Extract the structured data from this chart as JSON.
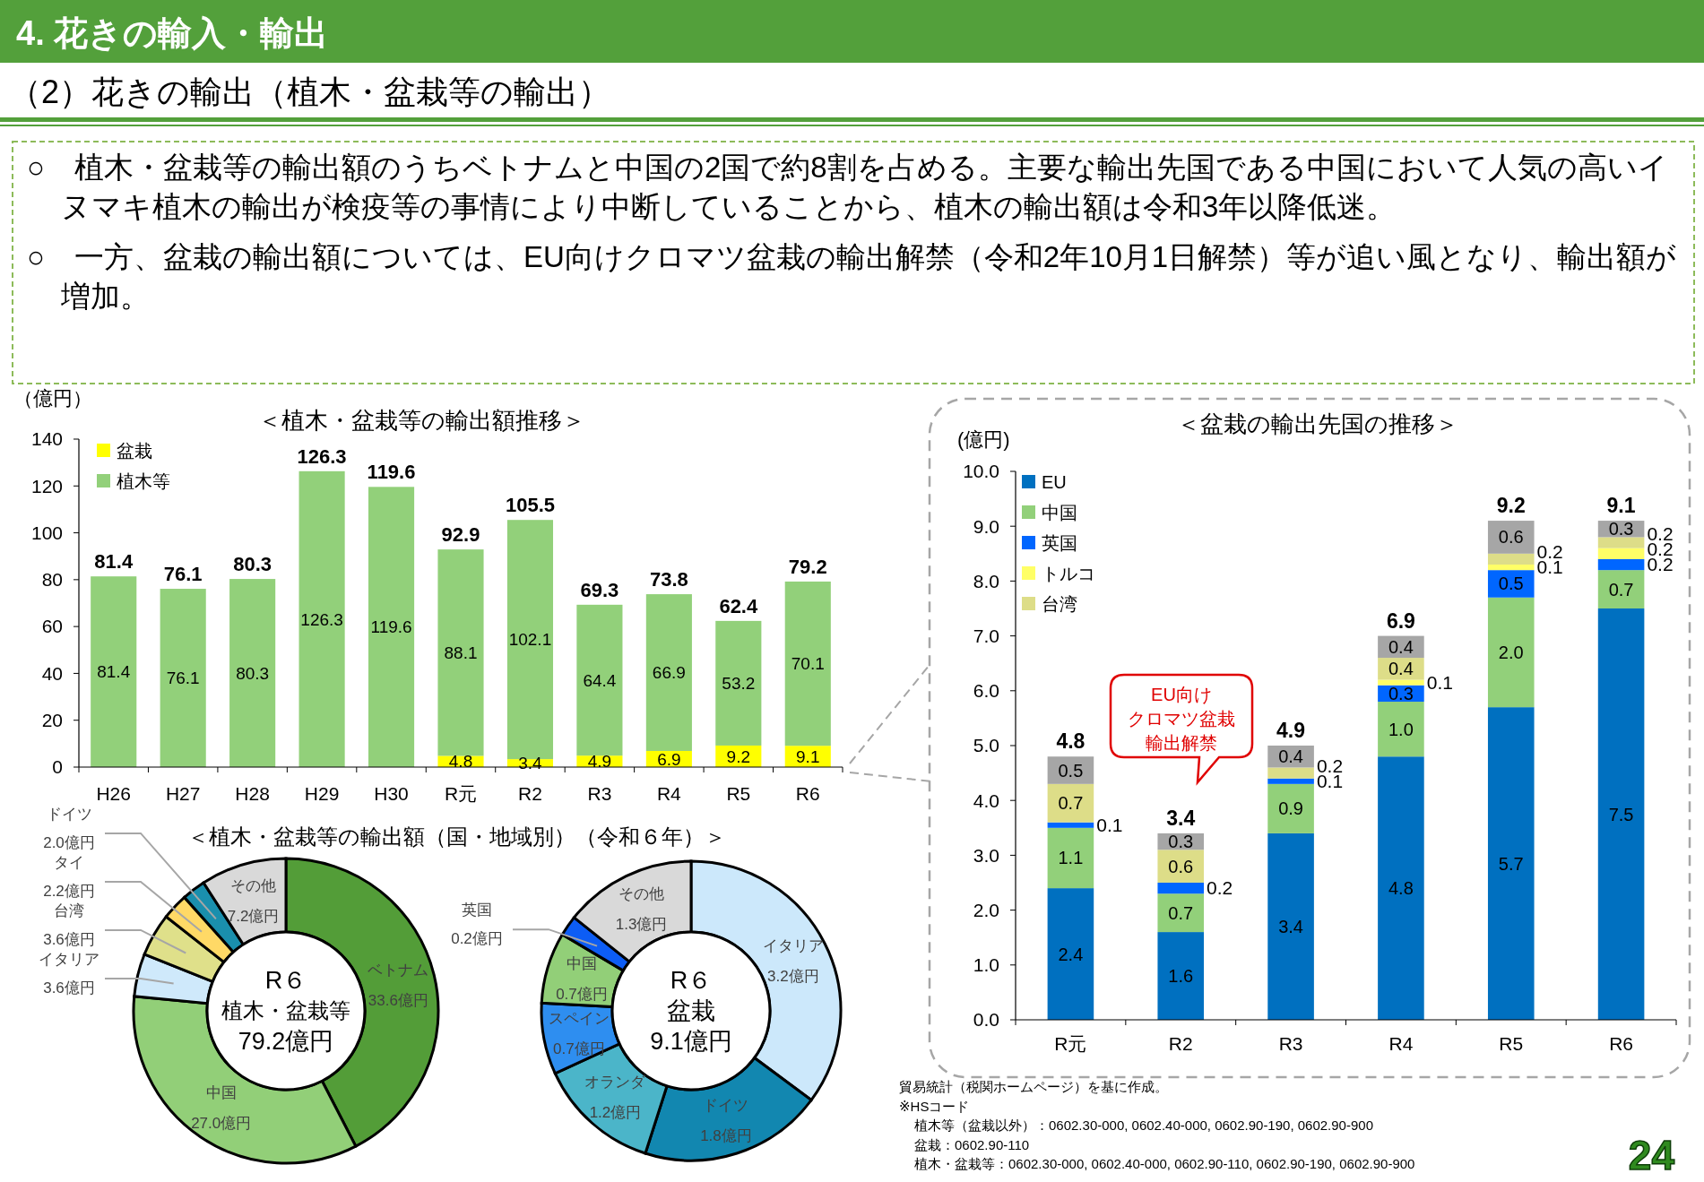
{
  "chart_data": [
    {
      "type": "other",
      "title": "4. 花きの輸入・輸出",
      "subtitle": "（2）花きの輸出（植木・盆栽等の輸出）",
      "annotations": [
        "○　植木・盆栽等の輸出額のうちベトナムと中国の2国で約8割を占める。主要な輸出先国である中国において人気の高いイヌマキ植木の輸出が検疫等の事情により中断していることから、植木の輸出額は令和3年以降低迷。",
        "○　一方、盆栽の輸出額については、EU向けクロマツ盆栽の輸出解禁（令和2年10月1日解禁）等が追い風となり、輸出額が増加。",
        "24"
      ]
    },
    {
      "type": "bar",
      "title": "＜植木・盆栽等の輸出額推移＞",
      "ylabel": "（億円）",
      "categories": [
        "H26",
        "H27",
        "H28",
        "H29",
        "H30",
        "R元",
        "R2",
        "R3",
        "R4",
        "R5",
        "R6"
      ],
      "stacked": true,
      "ylim": [
        0,
        140
      ],
      "yticks": [
        0,
        20,
        40,
        60,
        80,
        100,
        120,
        140
      ],
      "legend": "top left",
      "data_labels": true,
      "series": [
        {
          "name": "盆栽",
          "color": "#ffff00",
          "values": [
            null,
            null,
            null,
            null,
            null,
            4.8,
            3.4,
            4.9,
            6.9,
            9.2,
            9.1
          ]
        },
        {
          "name": "植木等",
          "color": "#92d07a",
          "values": [
            81.4,
            76.1,
            80.3,
            126.3,
            119.6,
            88.1,
            102.1,
            64.4,
            66.9,
            53.2,
            70.1
          ]
        }
      ],
      "totals": [
        "81.4",
        "76.1",
        "80.3",
        "126.3",
        "119.6",
        "92.9",
        "105.5",
        "69.3",
        "73.8",
        "62.4",
        "79.2"
      ]
    },
    {
      "type": "bar",
      "title": "＜盆栽の輸出先国の推移＞",
      "ylabel": "(億円)",
      "categories": [
        "R元",
        "R2",
        "R3",
        "R4",
        "R5",
        "R6"
      ],
      "stacked": true,
      "ylim": [
        0,
        10
      ],
      "yticks": [
        {
          "value": 0,
          "label": "0.0"
        },
        {
          "value": 1,
          "label": "1.0"
        },
        {
          "value": 2,
          "label": "2.0"
        },
        {
          "value": 3,
          "label": "3.0"
        },
        {
          "value": 4,
          "label": "4.0"
        },
        {
          "value": 5,
          "label": "5.0"
        },
        {
          "value": 6,
          "label": "6.0"
        },
        {
          "value": 7,
          "label": "7.0"
        },
        {
          "value": 8,
          "label": "8.0"
        },
        {
          "value": 9,
          "label": "9.0"
        },
        {
          "value": 10,
          "label": "10.0"
        }
      ],
      "legend": "top left",
      "series": [
        {
          "name": "EU",
          "color": "#0070c0",
          "values": [
            2.4,
            1.6,
            3.4,
            4.8,
            5.7,
            7.5
          ],
          "value_labels": [
            "2.4",
            "1.6",
            "3.4",
            "4.8",
            "5.7",
            "7.5"
          ]
        },
        {
          "name": "中国",
          "color": "#92d07a",
          "values": [
            1.1,
            0.7,
            0.9,
            1.0,
            2.0,
            0.7
          ],
          "value_labels": [
            "1.1",
            "0.7",
            "0.9",
            "1.0",
            "2.0",
            "0.7"
          ]
        },
        {
          "name": "英国",
          "color": "#0066ff",
          "values": [
            0.1,
            0.2,
            0.1,
            0.3,
            0.5,
            0.2
          ],
          "value_labels": [
            "0.1",
            "0.2",
            "0.1",
            "0.3",
            "0.5",
            "0.2"
          ]
        },
        {
          "name": "トルコ",
          "color": "#ffff66",
          "values": [
            null,
            null,
            null,
            0.1,
            0.1,
            0.2
          ],
          "value_labels": [
            null,
            null,
            null,
            "0.1",
            "0.1",
            "0.2"
          ]
        },
        {
          "name": "台湾",
          "color": "#dddd88",
          "values": [
            0.7,
            0.6,
            0.2,
            0.4,
            0.2,
            0.2
          ],
          "value_labels": [
            "0.7",
            "0.6",
            "0.2",
            "0.4",
            "0.2",
            "0.2"
          ]
        },
        {
          "color": "#a6a6a6",
          "values": [
            0.5,
            0.3,
            0.4,
            0.4,
            0.6,
            0.3
          ],
          "value_labels": [
            "0.5",
            "0.3",
            "0.4",
            "0.4",
            "0.6",
            "0.3"
          ]
        }
      ],
      "totals": [
        "4.8",
        "3.4",
        "4.9",
        "6.9",
        "9.2",
        "9.1"
      ],
      "annotations": [
        "EU向け",
        "クロマツ盆栽",
        "輸出解禁",
        "貿易統計（税関ホームページ）を基に作成。",
        "※HSコード",
        "植木等（盆栽以外）：0602.30-000, 0602.40-000, 0602.90-190, 0602.90-900",
        "盆栽：0602.90-110",
        "植木・盆栽等：0602.30-000, 0602.40-000, 0602.90-110, 0602.90-190, 0602.90-900"
      ]
    },
    {
      "type": "donut",
      "title": "＜植木・盆栽等の輸出額（国・地域別）（令和６年）＞",
      "categories": [
        "ベトナム",
        "中国",
        "イタリア",
        "台湾",
        "タイ",
        "ドイツ",
        "その他"
      ],
      "values": [
        33.6,
        27.0,
        3.6,
        3.6,
        2.2,
        2.0,
        7.2
      ],
      "colors": [
        "#539d38",
        "#92cf78",
        "#cfe9fb",
        "#dfe08a",
        "#ffd966",
        "#1a8fad",
        "#d9d9d9"
      ],
      "value_labels": [
        "33.6億円",
        "27.0億円",
        "3.6億円",
        "3.6億円",
        "2.2億円",
        "2.0億円",
        "7.2億円"
      ],
      "annotations": [
        "R６",
        "植木・盆栽等",
        "79.2億円"
      ]
    },
    {
      "type": "donut",
      "categories": [
        "イタリア",
        "ドイツ",
        "オランダ",
        "スペイン",
        "中国",
        "英国",
        "その他"
      ],
      "values": [
        3.2,
        1.8,
        1.2,
        0.7,
        0.7,
        0.2,
        1.3
      ],
      "colors": [
        "#cce8fb",
        "#1287b0",
        "#4bb5c9",
        "#2e8ef0",
        "#92cf78",
        "#0d5df5",
        "#d9d9d9"
      ],
      "value_labels": [
        "3.2億円",
        "1.8億円",
        "1.2億円",
        "0.7億円",
        "0.7億円",
        "0.2億円",
        "1.3億円"
      ],
      "annotations": [
        "R６",
        "盆栽",
        "9.1億円"
      ]
    }
  ]
}
